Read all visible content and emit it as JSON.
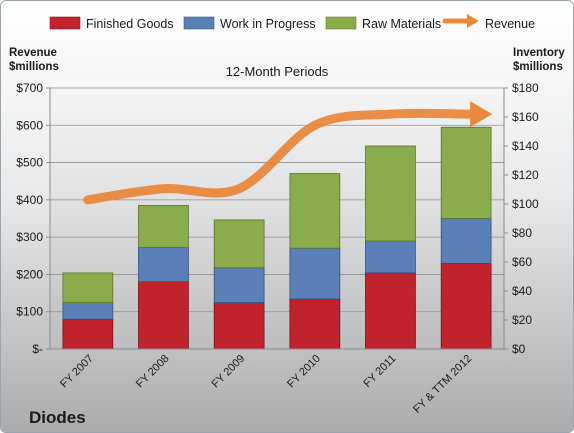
{
  "chart_data": {
    "type": "bar",
    "subtitle": "12-Month Periods",
    "company": "Diodes",
    "left_axis_label_1": "Revenue",
    "left_axis_label_2": "$millions",
    "right_axis_label_1": "Inventory",
    "right_axis_label_2": "$millions",
    "categories": [
      "FY 2007",
      "FY 2008",
      "FY 2009",
      "FY 2010",
      "FY 2011",
      "FY & TTM 2012"
    ],
    "left_ticks": [
      "$-",
      "$100",
      "$200",
      "$300",
      "$400",
      "$500",
      "$600",
      "$700"
    ],
    "right_ticks": [
      "$0",
      "$20",
      "$40",
      "$60",
      "$80",
      "$100",
      "$120",
      "$140",
      "$160",
      "$180"
    ],
    "ylim_left": [
      0,
      700
    ],
    "ylim_right": [
      0,
      180
    ],
    "series": [
      {
        "name": "Finished Goods",
        "color": "#c0232b",
        "axis": "right",
        "values": [
          20.5,
          46.5,
          32.0,
          34.5,
          52.5,
          59.0
        ]
      },
      {
        "name": "Work in Progress",
        "color": "#5b7fb8",
        "axis": "right",
        "values": [
          11.5,
          23.5,
          24.0,
          35.0,
          22.0,
          31.0
        ]
      },
      {
        "name": "Raw Materials",
        "color": "#8aac4a",
        "axis": "right",
        "values": [
          20.5,
          29.0,
          33.0,
          51.5,
          65.5,
          63.0
        ]
      },
      {
        "name": "Revenue",
        "color": "#e8883a",
        "axis": "left",
        "type": "line",
        "values": [
          400,
          430,
          430,
          600,
          630,
          630
        ]
      }
    ],
    "legend_position": "top"
  }
}
